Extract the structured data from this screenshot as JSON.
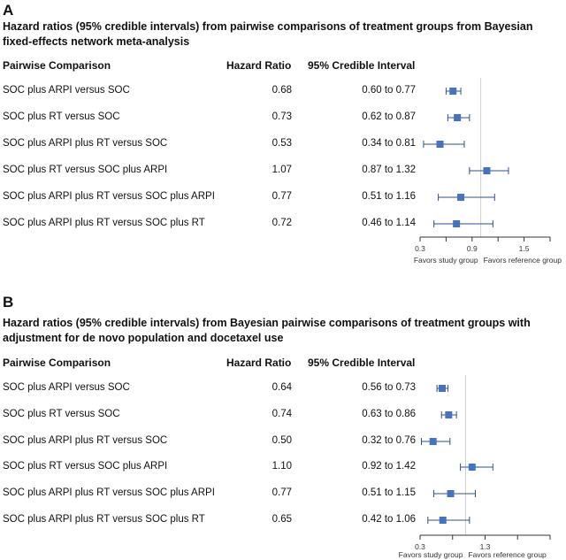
{
  "columns": {
    "comparison": "Pairwise Comparison",
    "hazard_ratio": "Hazard Ratio",
    "ci": "95% Credible Interval"
  },
  "panel_a": {
    "letter": "A",
    "title": "Hazard ratios (95% credible intervals) from pairwise comparisons of treatment groups from Bayesian fixed-effects network meta-analysis",
    "rows": [
      {
        "label": "SOC plus ARPI versus SOC",
        "hr": "0.68",
        "ci": "0.60 to 0.77"
      },
      {
        "label": "SOC plus RT versus SOC",
        "hr": "0.73",
        "ci": "0.62 to 0.87"
      },
      {
        "label": "SOC plus ARPI plus RT versus SOC",
        "hr": "0.53",
        "ci": "0.34 to 0.81"
      },
      {
        "label": "SOC plus RT versus SOC plus ARPI",
        "hr": "1.07",
        "ci": "0.87 to 1.32"
      },
      {
        "label": "SOC plus ARPI plus RT versus SOC plus ARPI",
        "hr": "0.77",
        "ci": "0.51 to 1.16"
      },
      {
        "label": "SOC plus ARPI plus RT versus SOC plus RT",
        "hr": "0.72",
        "ci": "0.46 to 1.14"
      }
    ],
    "favors_left": "Favors study group",
    "favors_right": "Favors reference group"
  },
  "panel_b": {
    "letter": "B",
    "title": "Hazard ratios (95% credible intervals) from Bayesian pairwise comparisons of treatment groups with adjustment for de novo population and docetaxel use",
    "rows": [
      {
        "label": "SOC plus ARPI versus SOC",
        "hr": "0.64",
        "ci": "0.56 to 0.73"
      },
      {
        "label": "SOC plus RT versus SOC",
        "hr": "0.74",
        "ci": "0.63 to 0.86"
      },
      {
        "label": "SOC plus ARPI plus RT versus SOC",
        "hr": "0.50",
        "ci": "0.32 to 0.76"
      },
      {
        "label": "SOC plus RT versus SOC plus ARPI",
        "hr": "1.10",
        "ci": "0.92 to 1.42"
      },
      {
        "label": "SOC plus ARPI plus RT versus SOC plus ARPI",
        "hr": "0.77",
        "ci": "0.51 to 1.15"
      },
      {
        "label": "SOC plus ARPI plus RT versus SOC plus RT",
        "hr": "0.65",
        "ci": "0.42 to 1.06"
      }
    ],
    "favors_left": "Favors study group",
    "favors_right": "Favors reference group"
  },
  "chart_data": [
    {
      "type": "scatter",
      "title": "Hazard ratios (95% credible intervals) from pairwise comparisons of treatment groups from Bayesian fixed-effects network meta-analysis",
      "categories": [
        "SOC plus ARPI versus SOC",
        "SOC plus RT versus SOC",
        "SOC plus ARPI plus RT versus SOC",
        "SOC plus RT versus SOC plus ARPI",
        "SOC plus ARPI plus RT versus SOC plus ARPI",
        "SOC plus ARPI plus RT versus SOC plus RT"
      ],
      "values": [
        0.68,
        0.73,
        0.53,
        1.07,
        0.77,
        0.72
      ],
      "lower": [
        0.6,
        0.62,
        0.34,
        0.87,
        0.51,
        0.46
      ],
      "upper": [
        0.77,
        0.87,
        0.81,
        1.32,
        1.16,
        1.14
      ],
      "x_ticks": [
        0.3,
        0.6,
        0.9,
        1.2,
        1.5,
        1.8
      ],
      "x_tick_labels": [
        "0.3",
        "",
        "0.9",
        "",
        "1.5",
        ""
      ],
      "xlim": [
        0.3,
        1.8
      ],
      "reference_line": 1.0,
      "marker_color": "#4472c4",
      "errorbar_color": "#2f4f8f"
    },
    {
      "type": "scatter",
      "title": "Hazard ratios (95% credible intervals) from Bayesian pairwise comparisons of treatment groups with adjustment for de novo population and docetaxel use",
      "categories": [
        "SOC plus ARPI versus SOC",
        "SOC plus RT versus SOC",
        "SOC plus ARPI plus RT versus SOC",
        "SOC plus RT versus SOC plus ARPI",
        "SOC plus ARPI plus RT versus SOC plus ARPI",
        "SOC plus ARPI plus RT versus SOC plus RT"
      ],
      "values": [
        0.64,
        0.74,
        0.5,
        1.1,
        0.77,
        0.65
      ],
      "lower": [
        0.56,
        0.63,
        0.32,
        0.92,
        0.51,
        0.42
      ],
      "upper": [
        0.73,
        0.86,
        0.76,
        1.42,
        1.15,
        1.06
      ],
      "x_ticks": [
        0.3,
        0.8,
        1.3,
        1.8,
        2.3
      ],
      "x_tick_labels": [
        "0.3",
        "",
        "1.3",
        "",
        ""
      ],
      "xlim": [
        0.3,
        2.3
      ],
      "reference_line": 1.0,
      "marker_color": "#4472c4",
      "errorbar_color": "#2f4f8f"
    }
  ]
}
